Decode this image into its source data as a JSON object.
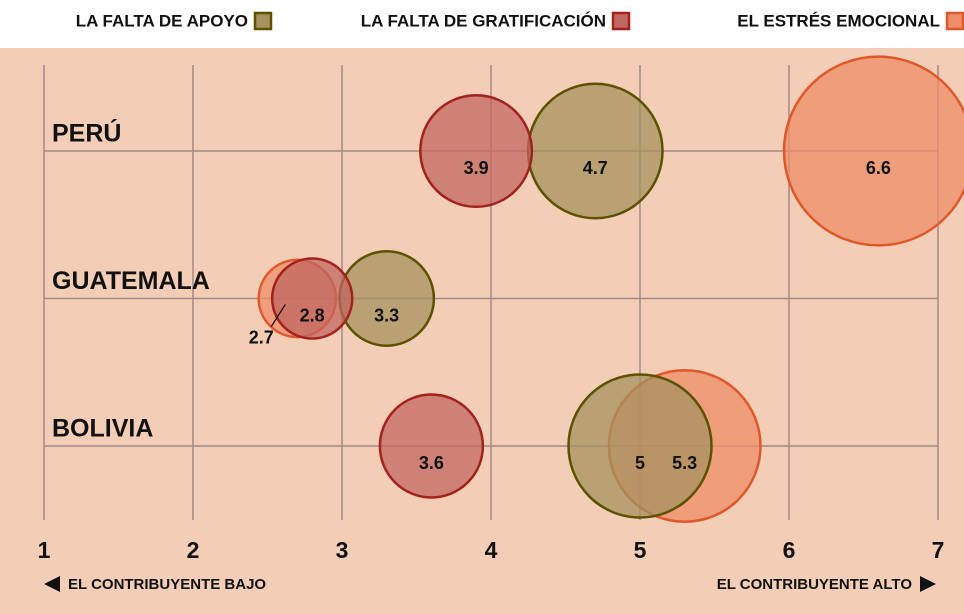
{
  "chart_data": {
    "type": "bubble",
    "categories": [
      "PERÚ",
      "GUATEMALA",
      "BOLIVIA"
    ],
    "series": [
      {
        "name": "LA FALTA DE APOYO",
        "color": "#a6925f",
        "values": [
          4.7,
          3.3,
          5
        ]
      },
      {
        "name": "LA FALTA DE GRATIFICACIÓN",
        "color": "#c2675f",
        "values": [
          3.9,
          2.8,
          3.6
        ]
      },
      {
        "name": "EL ESTRÉS EMOCIONAL",
        "color": "#ef8c6a",
        "values": [
          6.6,
          2.7,
          5.3
        ]
      }
    ],
    "xlim": [
      1,
      7
    ],
    "xticks": [
      1,
      2,
      3,
      4,
      5,
      6,
      7
    ],
    "grid": true,
    "x_label_low": "EL CONTRIBUYENTE BAJO",
    "x_label_high": "EL CONTRIBUYENTE ALTO"
  }
}
